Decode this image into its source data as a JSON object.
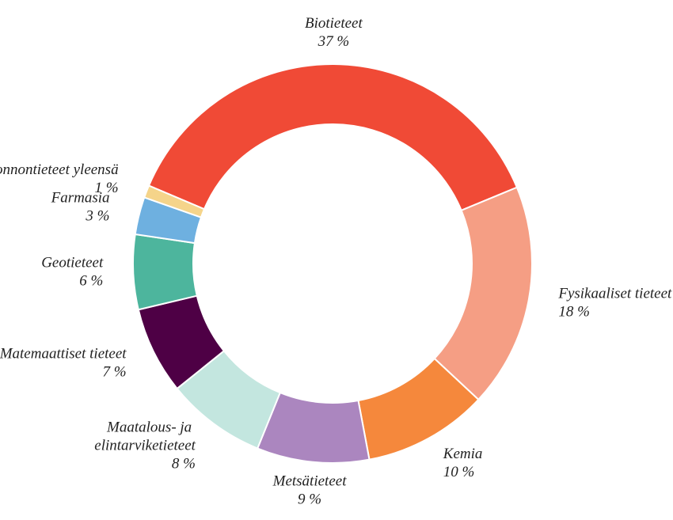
{
  "chart_data": {
    "type": "donut",
    "categories": [
      "Biotieteet",
      "Fysikaaliset tieteet",
      "Kemia",
      "Metsätieteet",
      "Maatalous- ja elintarviketieteet",
      "Matemaattiset tieteet",
      "Geotieteet",
      "Farmasia",
      "Luonnontieteet yleensä"
    ],
    "values": [
      37,
      18,
      10,
      9,
      8,
      7,
      6,
      3,
      1
    ],
    "value_labels": [
      "37 %",
      "18 %",
      "10 %",
      "9 %",
      "8 %",
      "7 %",
      "6 %",
      "3 %",
      "1 %"
    ],
    "colors": [
      "#f04a36",
      "#f59e84",
      "#f5883c",
      "#ab86bf",
      "#c3e6df",
      "#4e0045",
      "#4db59d",
      "#6eb0e0",
      "#f5d48a"
    ]
  }
}
